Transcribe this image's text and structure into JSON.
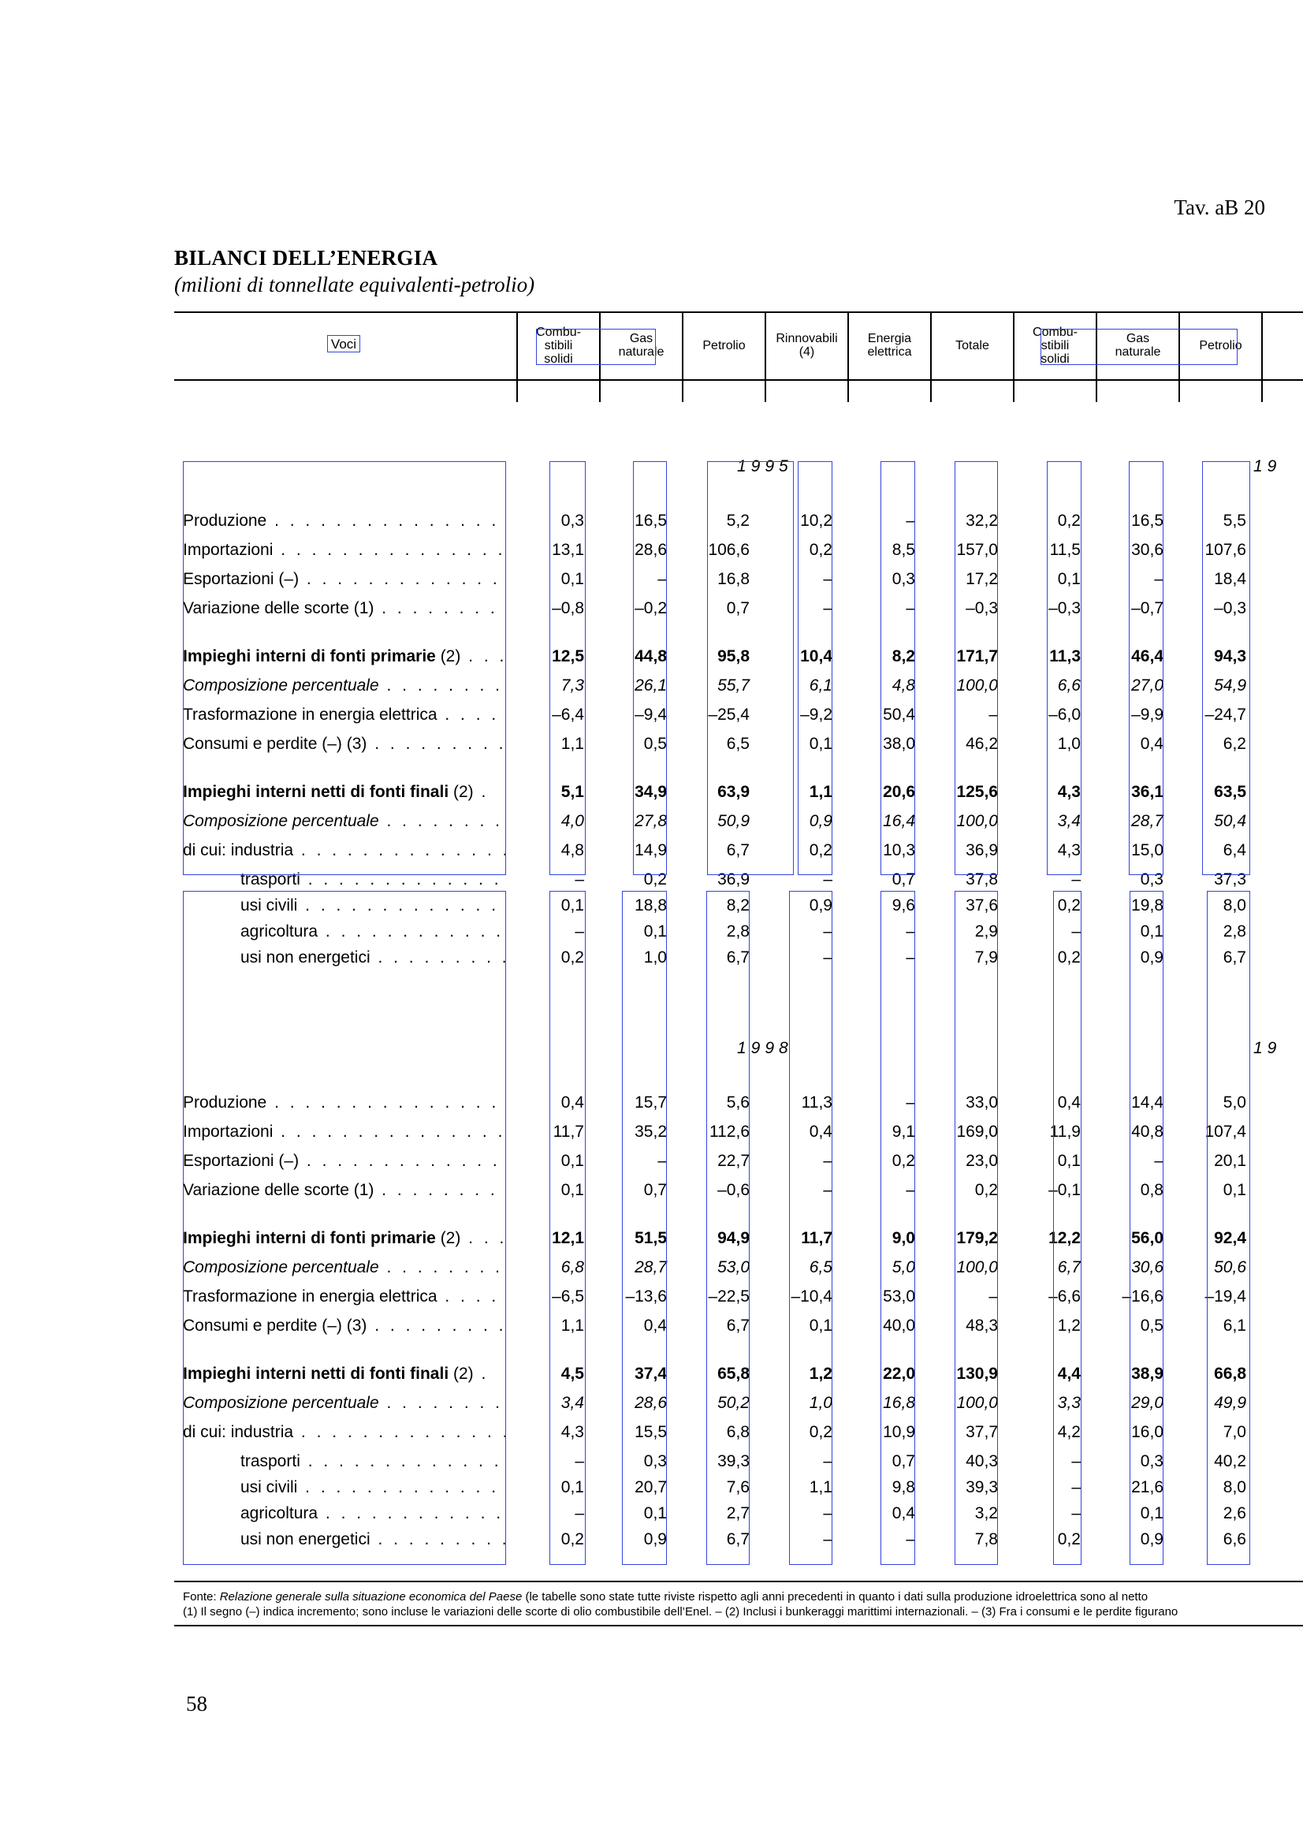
{
  "header": {
    "tav": "Tav. aB  20"
  },
  "title": "BILANCI DELL’ENERGIA",
  "subtitle": "(milioni di tonnellate equivalenti-petrolio)",
  "columns": {
    "voci": "Voci",
    "cols": [
      "Combu-\nstibili\nsolidi",
      "Gas\nnaturale",
      "Petrolio",
      "Rinnovabili\n(4)",
      "Energia\nelettrica",
      "Totale",
      "Combu-\nstibili\nsolidi",
      "Gas\nnaturale",
      "Petrolio"
    ]
  },
  "sections": [
    {
      "year_mid": "1995",
      "year_right": "19",
      "rows": [
        {
          "label": "Produzione",
          "dots": " . . . . . . . . . . . . . . . . . . . . . . . . .",
          "indent": false,
          "style": "normal",
          "values": [
            "0,3",
            "16,5",
            "5,2",
            "10,2",
            "–",
            "32,2",
            "0,2",
            "16,5",
            "5,5"
          ]
        },
        {
          "label": "Importazioni",
          "dots": " . . . . . . . . . . . . . . . . . . . . . . . .",
          "indent": false,
          "style": "normal",
          "values": [
            "13,1",
            "28,6",
            "106,6",
            "0,2",
            "8,5",
            "157,0",
            "11,5",
            "30,6",
            "107,6"
          ]
        },
        {
          "label": "Esportazioni (–)",
          "dots": " . . . . . . . . . . . . . . . . . . . . .",
          "indent": false,
          "style": "normal",
          "values": [
            "0,1",
            "–",
            "16,8",
            "–",
            "0,3",
            "17,2",
            "0,1",
            "–",
            "18,4"
          ]
        },
        {
          "label": "Variazione delle scorte (1)",
          "dots": " . . . . . . . . . . . .",
          "indent": false,
          "style": "normal",
          "values": [
            "–0,8",
            "–0,2",
            "0,7",
            "–",
            "–",
            "–0,3",
            "–0,3",
            "–0,7",
            "–0,3"
          ]
        },
        {
          "label": "Impieghi interni di fonti primarie",
          "note": " (2)",
          "dots": " . . .",
          "indent": false,
          "style": "bold",
          "gap": true,
          "values": [
            "12,5",
            "44,8",
            "95,8",
            "10,4",
            "8,2",
            "171,7",
            "11,3",
            "46,4",
            "94,3"
          ]
        },
        {
          "label": "Composizione percentuale",
          "dots": " . . . . . . . . . . . .",
          "indent": false,
          "style": "ital",
          "values": [
            "7,3",
            "26,1",
            "55,7",
            "6,1",
            "4,8",
            "100,0",
            "6,6",
            "27,0",
            "54,9"
          ]
        },
        {
          "label": "Trasformazione in energia elettrica",
          "dots": " . . . . . .",
          "indent": false,
          "style": "normal",
          "values": [
            "–6,4",
            "–9,4",
            "–25,4",
            "–9,2",
            "50,4",
            "–",
            "–6,0",
            "–9,9",
            "–24,7"
          ]
        },
        {
          "label": "Consumi e perdite (–) (3)",
          "dots": " . . . . . . . . . . . . .",
          "indent": false,
          "style": "normal",
          "values": [
            "1,1",
            "0,5",
            "6,5",
            "0,1",
            "38,0",
            "46,2",
            "1,0",
            "0,4",
            "6,2"
          ]
        },
        {
          "label": "Impieghi interni netti di fonti finali",
          "note": " (2)",
          "dots": "  .",
          "indent": false,
          "style": "bold",
          "gap": true,
          "values": [
            "5,1",
            "34,9",
            "63,9",
            "1,1",
            "20,6",
            "125,6",
            "4,3",
            "36,1",
            "63,5"
          ]
        },
        {
          "label": "Composizione percentuale",
          "dots": " . . . . . . . . . . . .",
          "indent": false,
          "style": "ital",
          "values": [
            "4,0",
            "27,8",
            "50,9",
            "0,9",
            "16,4",
            "100,0",
            "3,4",
            "28,7",
            "50,4"
          ]
        },
        {
          "label": "di cui:   industria",
          "dots": "  . . . . . . . . . . . . . . . . . . .",
          "indent": false,
          "style": "normal",
          "values": [
            "4,8",
            "14,9",
            "6,7",
            "0,2",
            "10,3",
            "36,9",
            "4,3",
            "15,0",
            "6,4"
          ]
        },
        {
          "label": "trasporti",
          "dots": " . . . . . . . . . . . . . . . . . . . . .",
          "indent": true,
          "style": "normal",
          "tight": true,
          "values": [
            "–",
            "0,2",
            "36,9",
            "–",
            "0,7",
            "37,8",
            "–",
            "0,3",
            "37,3"
          ]
        },
        {
          "label": "usi civili",
          "dots": " . . . . . . . . . . . . . . . . . . . . .",
          "indent": true,
          "style": "normal",
          "tight": true,
          "values": [
            "0,1",
            "18,8",
            "8,2",
            "0,9",
            "9,6",
            "37,6",
            "0,2",
            "19,8",
            "8,0"
          ]
        },
        {
          "label": "agricoltura",
          "dots": " . . . . . . . . . . . . . . . . . . .",
          "indent": true,
          "style": "normal",
          "tight": true,
          "values": [
            "–",
            "0,1",
            "2,8",
            "–",
            "–",
            "2,9",
            "–",
            "0,1",
            "2,8"
          ]
        },
        {
          "label": "usi non energetici",
          "dots": " . . . . . . . . . . . . .",
          "indent": true,
          "style": "normal",
          "tight": true,
          "values": [
            "0,2",
            "1,0",
            "6,7",
            "–",
            "–",
            "7,9",
            "0,2",
            "0,9",
            "6,7"
          ]
        }
      ]
    },
    {
      "year_mid": "1998",
      "year_right": "19",
      "rows": [
        {
          "label": "Produzione",
          "dots": " . . . . . . . . . . . . . . . . . . . . . . . . .",
          "indent": false,
          "style": "normal",
          "values": [
            "0,4",
            "15,7",
            "5,6",
            "11,3",
            "–",
            "33,0",
            "0,4",
            "14,4",
            "5,0"
          ]
        },
        {
          "label": "Importazioni",
          "dots": " . . . . . . . . . . . . . . . . . . . . . . . .",
          "indent": false,
          "style": "normal",
          "values": [
            "11,7",
            "35,2",
            "112,6",
            "0,4",
            "9,1",
            "169,0",
            "11,9",
            "40,8",
            "107,4"
          ]
        },
        {
          "label": "Esportazioni (–)",
          "dots": " . . . . . . . . . . . . . . . . . . . . .",
          "indent": false,
          "style": "normal",
          "values": [
            "0,1",
            "–",
            "22,7",
            "–",
            "0,2",
            "23,0",
            "0,1",
            "–",
            "20,1"
          ]
        },
        {
          "label": "Variazione delle scorte (1)",
          "dots": " . . . . . . . . . . . .",
          "indent": false,
          "style": "normal",
          "values": [
            "0,1",
            "0,7",
            "–0,6",
            "–",
            "–",
            "0,2",
            "–0,1",
            "0,8",
            "0,1"
          ]
        },
        {
          "label": "Impieghi interni di fonti primarie",
          "note": " (2)",
          "dots": " . . .",
          "indent": false,
          "style": "bold",
          "gap": true,
          "values": [
            "12,1",
            "51,5",
            "94,9",
            "11,7",
            "9,0",
            "179,2",
            "12,2",
            "56,0",
            "92,4"
          ]
        },
        {
          "label": "Composizione percentuale",
          "dots": " . . . . . . . . . . . .",
          "indent": false,
          "style": "ital",
          "values": [
            "6,8",
            "28,7",
            "53,0",
            "6,5",
            "5,0",
            "100,0",
            "6,7",
            "30,6",
            "50,6"
          ]
        },
        {
          "label": "Trasformazione in energia elettrica",
          "dots": " . . . . . .",
          "indent": false,
          "style": "normal",
          "values": [
            "–6,5",
            "–13,6",
            "–22,5",
            "–10,4",
            "53,0",
            "–",
            "–6,6",
            "–16,6",
            "–19,4"
          ]
        },
        {
          "label": "Consumi e perdite (–) (3)",
          "dots": " . . . . . . . . . . . . .",
          "indent": false,
          "style": "normal",
          "values": [
            "1,1",
            "0,4",
            "6,7",
            "0,1",
            "40,0",
            "48,3",
            "1,2",
            "0,5",
            "6,1"
          ]
        },
        {
          "label": "Impieghi interni netti di fonti finali",
          "note": " (2)",
          "dots": "  .",
          "indent": false,
          "style": "bold",
          "gap": true,
          "values": [
            "4,5",
            "37,4",
            "65,8",
            "1,2",
            "22,0",
            "130,9",
            "4,4",
            "38,9",
            "66,8"
          ]
        },
        {
          "label": "Composizione percentuale",
          "dots": " . . . . . . . . . . . .",
          "indent": false,
          "style": "ital",
          "values": [
            "3,4",
            "28,6",
            "50,2",
            "1,0",
            "16,8",
            "100,0",
            "3,3",
            "29,0",
            "49,9"
          ]
        },
        {
          "label": "di cui:   industria",
          "dots": "  . . . . . . . . . . . . . . . . . . .",
          "indent": false,
          "style": "normal",
          "values": [
            "4,3",
            "15,5",
            "6,8",
            "0,2",
            "10,9",
            "37,7",
            "4,2",
            "16,0",
            "7,0"
          ]
        },
        {
          "label": "trasporti",
          "dots": " . . . . . . . . . . . . . . . . . . . . .",
          "indent": true,
          "style": "normal",
          "tight": true,
          "values": [
            "–",
            "0,3",
            "39,3",
            "–",
            "0,7",
            "40,3",
            "–",
            "0,3",
            "40,2"
          ]
        },
        {
          "label": "usi civili",
          "dots": " . . . . . . . . . . . . . . . . . . . . .",
          "indent": true,
          "style": "normal",
          "tight": true,
          "values": [
            "0,1",
            "20,7",
            "7,6",
            "1,1",
            "9,8",
            "39,3",
            "–",
            "21,6",
            "8,0"
          ]
        },
        {
          "label": "agricoltura",
          "dots": " . . . . . . . . . . . . . . . . . . .",
          "indent": true,
          "style": "normal",
          "tight": true,
          "values": [
            "–",
            "0,1",
            "2,7",
            "–",
            "0,4",
            "3,2",
            "–",
            "0,1",
            "2,6"
          ]
        },
        {
          "label": "usi non energetici",
          "dots": " . . . . . . . . . . . . .",
          "indent": true,
          "style": "normal",
          "tight": true,
          "values": [
            "0,2",
            "0,9",
            "6,7",
            "–",
            "–",
            "7,8",
            "0,2",
            "0,9",
            "6,6"
          ]
        }
      ]
    }
  ],
  "footnotes": {
    "fonte_prefix": "Fonte: ",
    "fonte_title": "Relazione generale sulla situazione economica del Paese",
    "fonte_rest": " (le tabelle sono state tutte riviste rispetto agli anni precedenti in quanto i dati sulla produzione idroelettrica sono al netto",
    "note_line": "(1) Il segno (–) indica incremento; sono incluse le variazioni delle scorte di olio combustibile dell’Enel. – (2) Inclusi i bunkeraggi marittimi internazionali. – (3) Fra i consumi e le perdite figurano"
  },
  "page_number": "58"
}
